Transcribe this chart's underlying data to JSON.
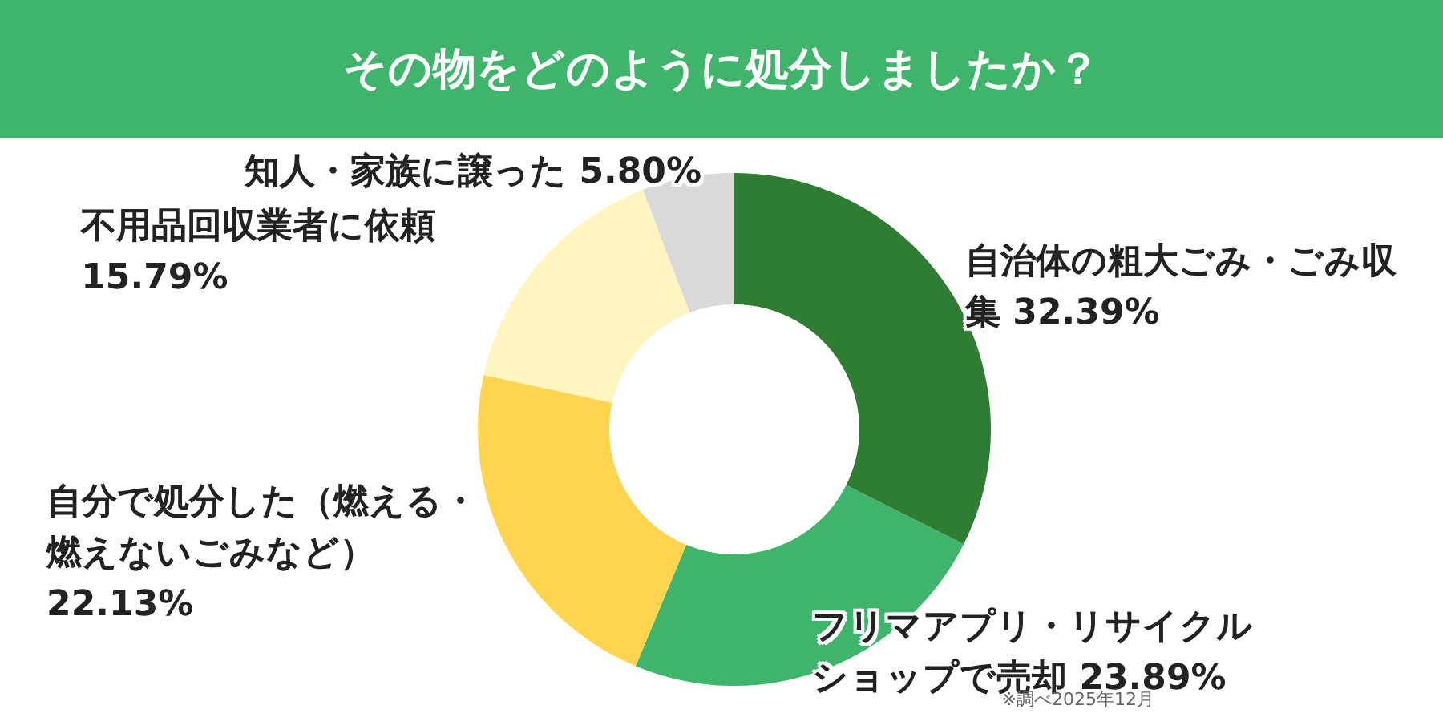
{
  "chart_data": {
    "type": "donut",
    "title": "その物をどのように処分しましたか？",
    "categories": [
      "自治体の粗大ごみ・ごみ収集",
      "フリマアプリ・リサイクルショップで売却",
      "自分で処分した（燃える・燃えないごみなど）",
      "不用品回収業者に依頼",
      "知人・家族に譲った"
    ],
    "values": [
      32.39,
      23.89,
      22.13,
      15.79,
      5.8
    ],
    "value_labels": [
      "32.39%",
      "23.89%",
      "22.13%",
      "15.79%",
      "5.80%"
    ],
    "colors": [
      "#2e7d32",
      "#3fb56b",
      "#ffd54f",
      "#fff5c0",
      "#d9d9d9"
    ],
    "annotations": [
      "※調べ2025年12月"
    ]
  }
}
